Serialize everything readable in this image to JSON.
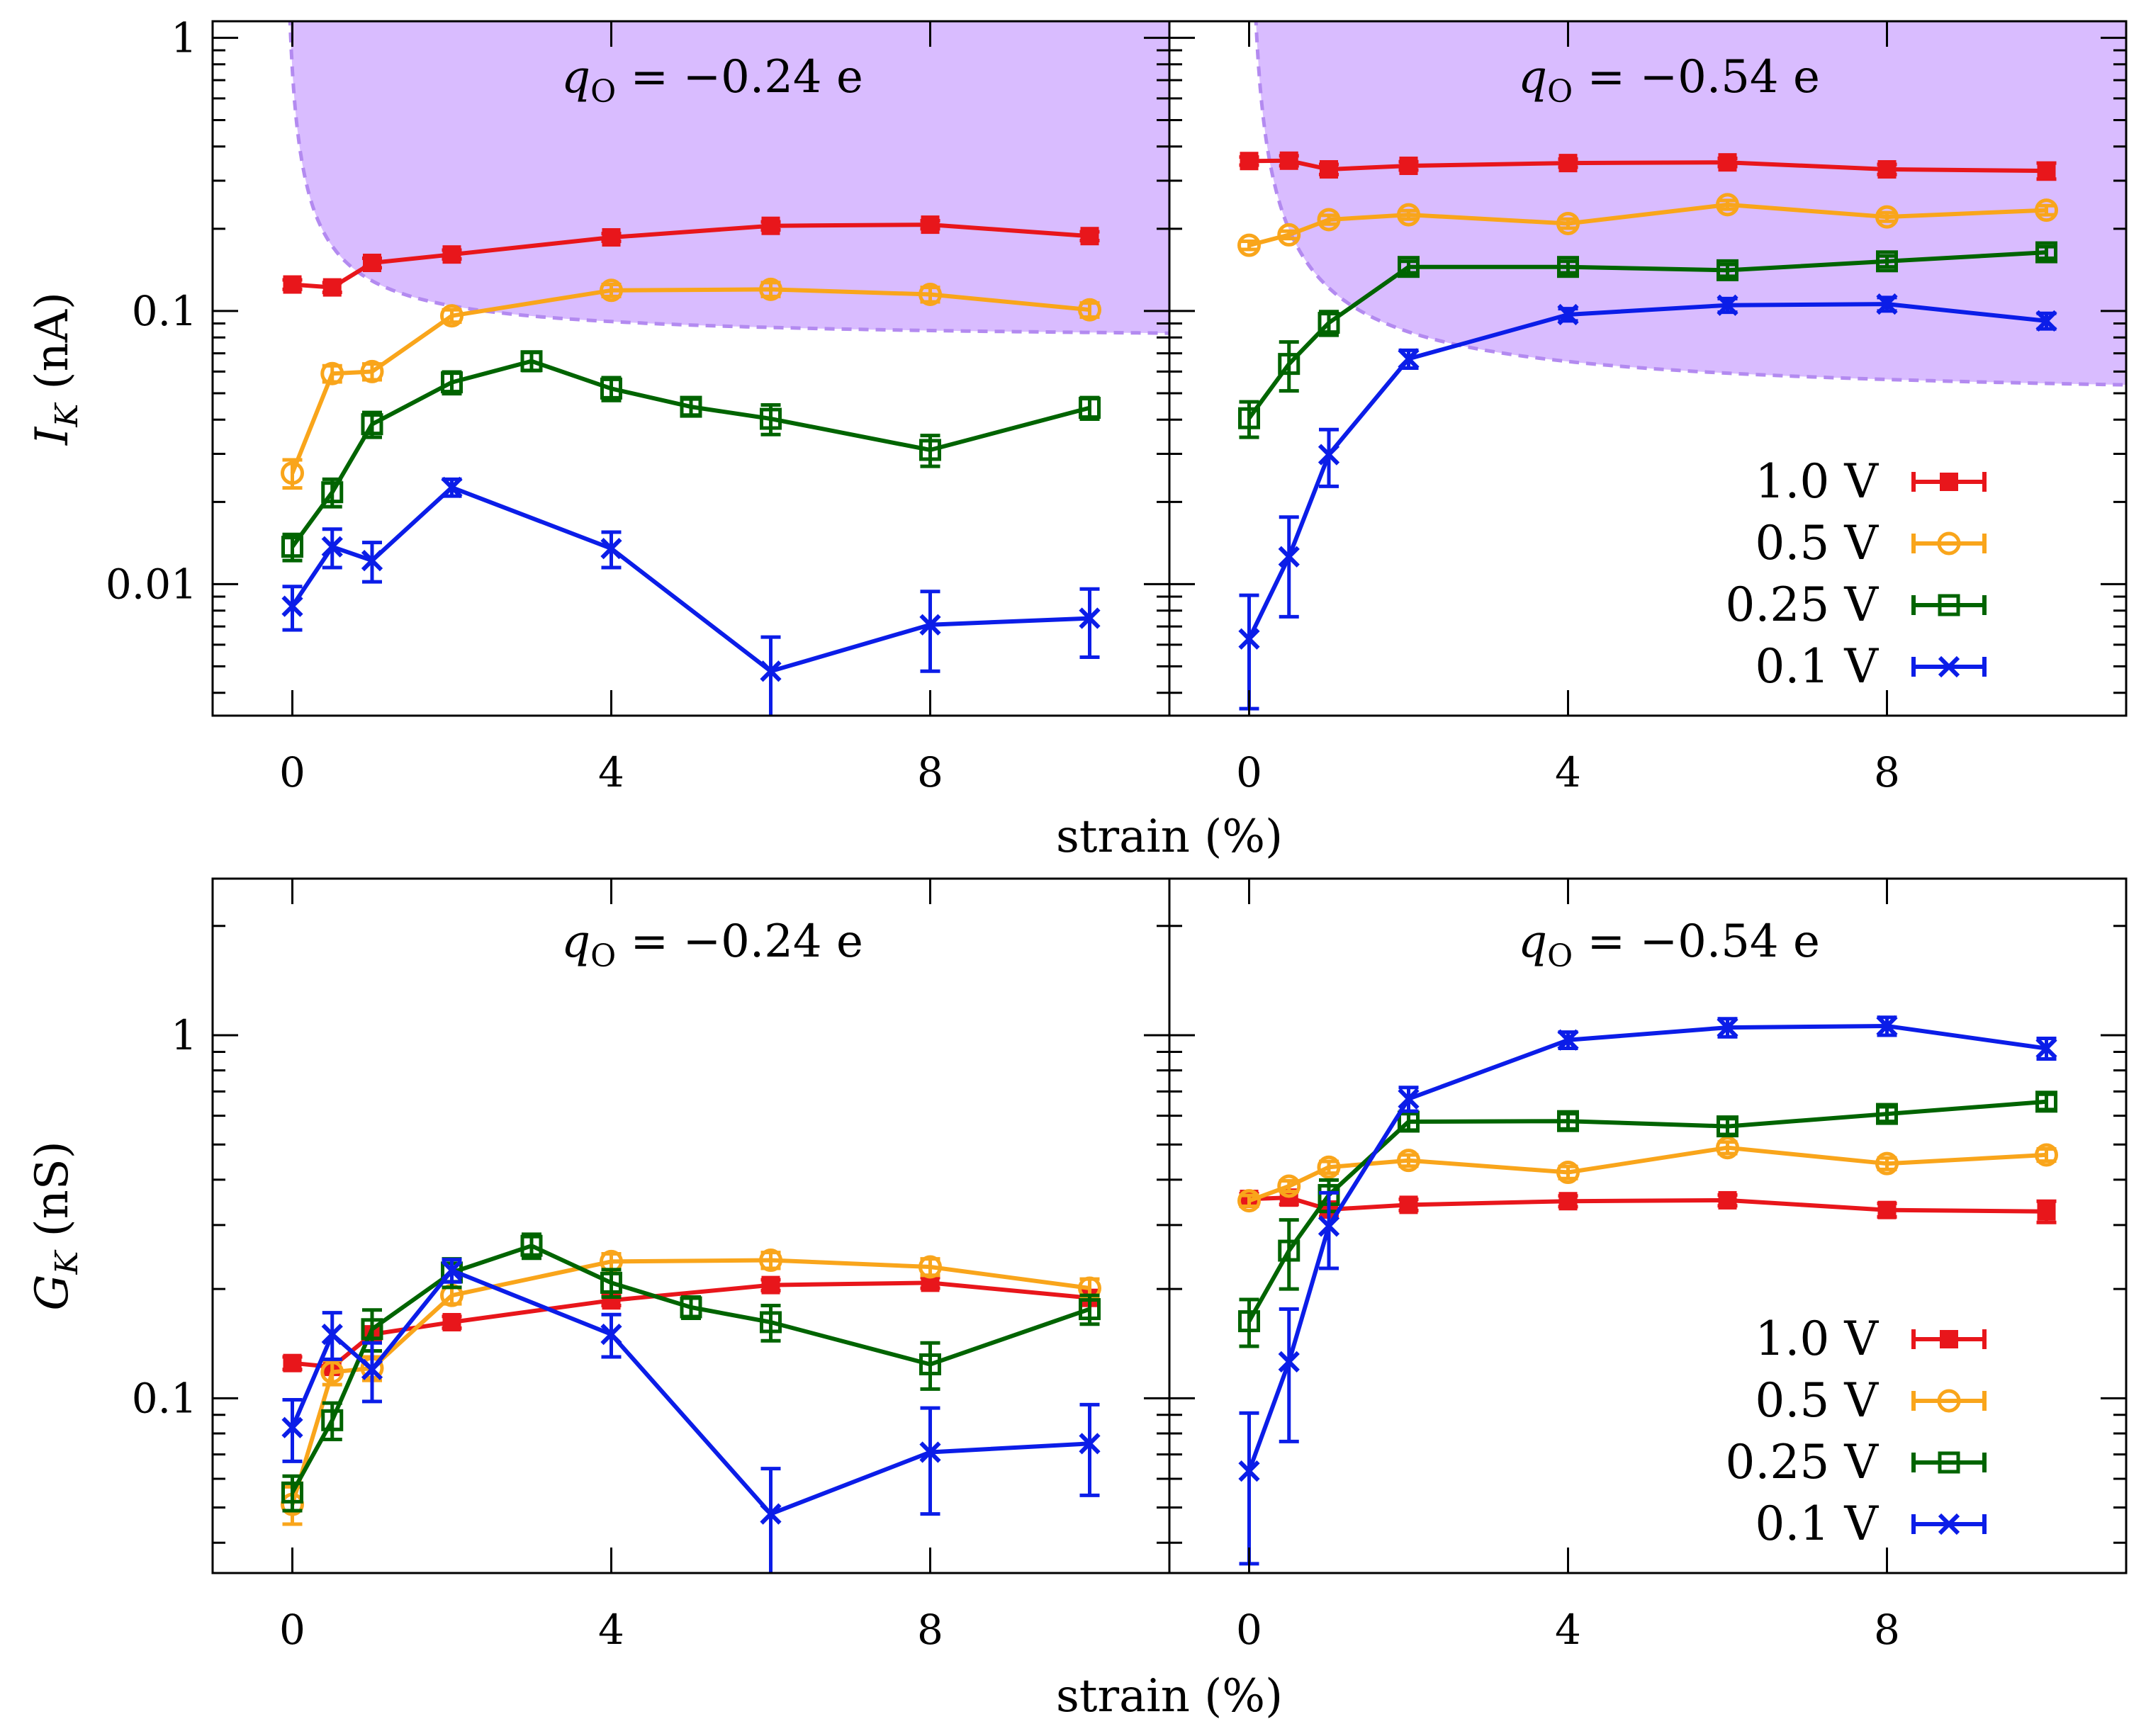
{
  "chart_data": {
    "type": "line",
    "title": "",
    "colors": {
      "1.0 V": "#e8161b",
      "0.5 V": "#f9a51b",
      "0.25 V": "#006400",
      "0.1 V": "#0b1de8",
      "shade": "#d9bcff",
      "shade_edge": "#b38af0"
    },
    "legend_labels": [
      "1.0 V",
      "0.5 V",
      "0.25 V",
      "0.1 V"
    ],
    "legend_placement": "lower-right of right panels",
    "marker_types": {
      "1.0 V": "filled-square",
      "0.5 V": "open-circle",
      "0.25 V": "open-square",
      "0.1 V": "cross"
    },
    "panels": [
      {
        "id": "top-left",
        "title_var": "q",
        "title_sub": "O",
        "title_rest": " = −0.24 e",
        "ylabel": "I_K (nA)",
        "ylabel_main": "I",
        "ylabel_sub": "K",
        "ylabel_unit": " (nA)",
        "xlabel": "strain (%)",
        "yscale": "log",
        "xlim": [
          -1,
          11
        ],
        "ylim": [
          0.0033,
          1.15
        ],
        "yticks": [
          0.01,
          0.1,
          1
        ],
        "ytick_labels": [
          "0.01",
          "0.1",
          "1"
        ],
        "xticks": [
          0,
          4,
          8
        ],
        "xtick_labels": [
          "0",
          "4",
          "8"
        ],
        "shaded_region": {
          "a": 0.055,
          "b": 0.078,
          "x0": -0.08
        },
        "series": [
          {
            "name": "1.0 V",
            "x": [
              0,
              0.5,
              1,
              2,
              4,
              6,
              8,
              10
            ],
            "y": [
              0.125,
              0.122,
              0.15,
              0.161,
              0.186,
              0.205,
              0.207,
              0.188
            ],
            "err": [
              0.005,
              0.005,
              0.006,
              0.006,
              0.006,
              0.007,
              0.007,
              0.007
            ]
          },
          {
            "name": "0.5 V",
            "x": [
              0,
              0.5,
              1,
              2,
              4,
              6,
              8,
              10
            ],
            "y": [
              0.0255,
              0.059,
              0.06,
              0.096,
              0.119,
              0.12,
              0.115,
              0.101
            ],
            "err": [
              0.003,
              0.004,
              0.004,
              0.005,
              0.006,
              0.007,
              0.007,
              0.006
            ]
          },
          {
            "name": "0.25 V",
            "x": [
              0,
              0.5,
              1,
              2,
              3,
              4,
              5,
              6,
              8,
              10
            ],
            "y": [
              0.0137,
              0.0217,
              0.0385,
              0.0548,
              0.0655,
              0.052,
              0.0446,
              0.0403,
              0.031,
              0.0442
            ],
            "err": [
              0.0015,
              0.0025,
              0.004,
              0.005,
              0.005,
              0.005,
              0.003,
              0.005,
              0.004,
              0.004
            ]
          },
          {
            "name": "0.1 V",
            "x": [
              0,
              0.5,
              1,
              2,
              4,
              6,
              8,
              10
            ],
            "y": [
              0.0083,
              0.0137,
              0.0122,
              0.0226,
              0.0135,
              0.0048,
              0.0071,
              0.0075
            ],
            "err": [
              0.0015,
              0.0022,
              0.002,
              0.0016,
              0.002,
              0.0016,
              0.0023,
              0.0021
            ]
          }
        ]
      },
      {
        "id": "top-right",
        "title_var": "q",
        "title_sub": "O",
        "title_rest": " = −0.54 e",
        "ylabel": "",
        "xlabel": "strain (%)",
        "yscale": "log",
        "xlim": [
          -1,
          11
        ],
        "ylim": [
          0.0033,
          1.15
        ],
        "yticks": [
          0.01,
          0.1,
          1
        ],
        "ytick_labels": [],
        "xticks": [
          0,
          4,
          8
        ],
        "xtick_labels": [
          "0",
          "4",
          "8"
        ],
        "shaded_region": {
          "a": 0.073,
          "b": 0.047,
          "x0": 0.02
        },
        "series": [
          {
            "name": "1.0 V",
            "x": [
              0,
              0.5,
              1,
              2,
              4,
              6,
              8,
              10
            ],
            "y": [
              0.354,
              0.355,
              0.33,
              0.34,
              0.348,
              0.35,
              0.33,
              0.326
            ],
            "err": [
              0.012,
              0.015,
              0.014,
              0.012,
              0.012,
              0.012,
              0.014,
              0.022
            ]
          },
          {
            "name": "0.5 V",
            "x": [
              0,
              0.5,
              1,
              2,
              4,
              6,
              8,
              10
            ],
            "y": [
              0.174,
              0.19,
              0.216,
              0.225,
              0.209,
              0.245,
              0.221,
              0.234
            ],
            "err": [
              0.006,
              0.006,
              0.008,
              0.008,
              0.008,
              0.009,
              0.008,
              0.009
            ]
          },
          {
            "name": "0.25 V",
            "x": [
              0,
              0.5,
              1,
              2,
              4,
              6,
              8,
              10
            ],
            "y": [
              0.0405,
              0.064,
              0.0905,
              0.145,
              0.145,
              0.141,
              0.152,
              0.164
            ],
            "err": [
              0.006,
              0.013,
              0.009,
              0.007,
              0.007,
              0.007,
              0.007,
              0.008
            ]
          },
          {
            "name": "0.1 V",
            "x": [
              0,
              0.5,
              1,
              2,
              4,
              6,
              8,
              10
            ],
            "y": [
              0.0063,
              0.0126,
              0.0298,
              0.0668,
              0.097,
              0.105,
              0.106,
              0.092
            ],
            "err": [
              0.0028,
              0.005,
              0.007,
              0.005,
              0.005,
              0.006,
              0.006,
              0.006
            ]
          }
        ]
      },
      {
        "id": "bottom-left",
        "title_var": "q",
        "title_sub": "O",
        "title_rest": " = −0.24 e",
        "ylabel": "G_K (nS)",
        "ylabel_main": "G",
        "ylabel_sub": "K",
        "ylabel_unit": " (nS)",
        "xlabel": "strain (%)",
        "yscale": "log",
        "xlim": [
          -1,
          11
        ],
        "ylim": [
          0.033,
          2.7
        ],
        "yticks": [
          0.1,
          1
        ],
        "ytick_labels": [
          "0.1",
          "1"
        ],
        "xticks": [
          0,
          4,
          8
        ],
        "xtick_labels": [
          "0",
          "4",
          "8"
        ],
        "series": [
          {
            "name": "1.0 V",
            "x": [
              0,
              0.5,
              1,
              2,
              4,
              6,
              8,
              10
            ],
            "y": [
              0.125,
              0.122,
              0.15,
              0.162,
              0.186,
              0.205,
              0.208,
              0.189
            ],
            "err": [
              0.005,
              0.005,
              0.006,
              0.006,
              0.006,
              0.007,
              0.007,
              0.007
            ]
          },
          {
            "name": "0.5 V",
            "x": [
              0,
              0.5,
              1,
              2,
              4,
              6,
              8,
              10
            ],
            "y": [
              0.051,
              0.118,
              0.121,
              0.192,
              0.238,
              0.24,
              0.23,
              0.201
            ],
            "err": [
              0.006,
              0.009,
              0.009,
              0.01,
              0.012,
              0.012,
              0.012,
              0.012
            ]
          },
          {
            "name": "0.25 V",
            "x": [
              0,
              0.5,
              1,
              2,
              3,
              4,
              5,
              6,
              8,
              10
            ],
            "y": [
              0.055,
              0.087,
              0.155,
              0.222,
              0.263,
              0.208,
              0.178,
              0.162,
              0.124,
              0.176
            ],
            "err": [
              0.006,
              0.01,
              0.02,
              0.02,
              0.02,
              0.018,
              0.012,
              0.018,
              0.018,
              0.016
            ]
          },
          {
            "name": "0.1 V",
            "x": [
              0,
              0.5,
              1,
              2,
              4,
              6,
              8,
              10
            ],
            "y": [
              0.083,
              0.15,
              0.12,
              0.225,
              0.15,
              0.048,
              0.071,
              0.075
            ],
            "err": [
              0.016,
              0.022,
              0.022,
              0.016,
              0.02,
              0.016,
              0.023,
              0.021
            ]
          }
        ]
      },
      {
        "id": "bottom-right",
        "title_var": "q",
        "title_sub": "O",
        "title_rest": " = −0.54 e",
        "ylabel": "",
        "xlabel": "strain (%)",
        "yscale": "log",
        "xlim": [
          -1,
          11
        ],
        "ylim": [
          0.033,
          2.7
        ],
        "yticks": [
          0.1,
          1
        ],
        "ytick_labels": [],
        "xticks": [
          0,
          4,
          8
        ],
        "xtick_labels": [
          "0",
          "4",
          "8"
        ],
        "series": [
          {
            "name": "1.0 V",
            "x": [
              0,
              0.5,
              1,
              2,
              4,
              6,
              8,
              10
            ],
            "y": [
              0.354,
              0.357,
              0.331,
              0.341,
              0.349,
              0.351,
              0.33,
              0.327
            ],
            "err": [
              0.012,
              0.015,
              0.014,
              0.012,
              0.012,
              0.012,
              0.014,
              0.022
            ]
          },
          {
            "name": "0.5 V",
            "x": [
              0,
              0.5,
              1,
              2,
              4,
              6,
              8,
              10
            ],
            "y": [
              0.35,
              0.384,
              0.433,
              0.452,
              0.419,
              0.49,
              0.443,
              0.468
            ],
            "err": [
              0.012,
              0.013,
              0.016,
              0.016,
              0.016,
              0.018,
              0.016,
              0.018
            ]
          },
          {
            "name": "0.25 V",
            "x": [
              0,
              0.5,
              1,
              2,
              4,
              6,
              8,
              10
            ],
            "y": [
              0.163,
              0.255,
              0.363,
              0.578,
              0.58,
              0.561,
              0.607,
              0.656
            ],
            "err": [
              0.024,
              0.055,
              0.036,
              0.03,
              0.028,
              0.028,
              0.028,
              0.032
            ]
          },
          {
            "name": "0.1 V",
            "x": [
              0,
              0.5,
              1,
              2,
              4,
              6,
              8,
              10
            ],
            "y": [
              0.063,
              0.126,
              0.298,
              0.668,
              0.97,
              1.05,
              1.06,
              0.92
            ],
            "err": [
              0.028,
              0.05,
              0.07,
              0.05,
              0.05,
              0.06,
              0.06,
              0.06
            ]
          }
        ]
      }
    ]
  }
}
